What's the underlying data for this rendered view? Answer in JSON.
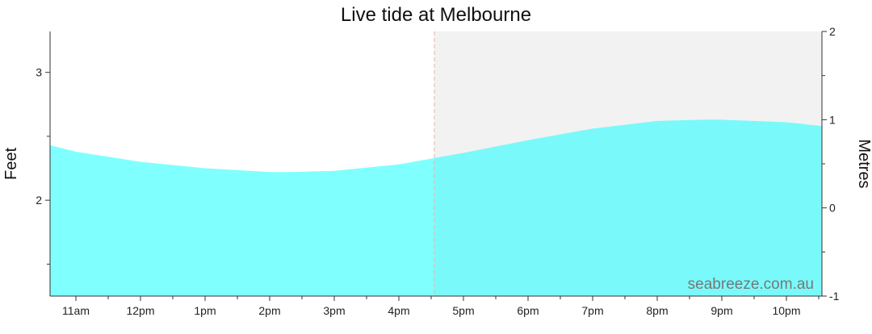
{
  "chart_data": {
    "type": "area",
    "title": "Live tide at Melbourne",
    "ylabel_left": "Feet",
    "ylabel_right": "Metres",
    "watermark": "seabreeze.com.au",
    "x_tick_labels": [
      "11am",
      "12pm",
      "1pm",
      "2pm",
      "3pm",
      "4pm",
      "5pm",
      "6pm",
      "7pm",
      "8pm",
      "9pm",
      "10pm"
    ],
    "x_tick_hours": [
      11,
      12,
      13,
      14,
      15,
      16,
      17,
      18,
      19,
      20,
      21,
      22
    ],
    "x_range_hours": [
      10.6,
      22.55
    ],
    "now_hour": 16.55,
    "ylim_feet": [
      1.25,
      3.32
    ],
    "y_left_ticks": [
      {
        "value": 3,
        "label": "3"
      },
      {
        "value": 2,
        "label": "2"
      }
    ],
    "y_left_minor_ticks": [
      2.5,
      1.5
    ],
    "y_right_ticks": [
      {
        "value": 2,
        "label": "2"
      },
      {
        "value": 1,
        "label": "1"
      },
      {
        "value": 0,
        "label": "0"
      },
      {
        "value": -1,
        "label": "-1"
      }
    ],
    "y_right_range_metres": [
      -1,
      2
    ],
    "series": [
      {
        "x_hours": [
          10.6,
          11,
          12,
          13,
          14,
          14.3,
          15,
          16,
          16.55,
          17,
          18,
          19,
          20,
          20.7,
          21,
          22,
          22.55
        ],
        "y_feet": [
          2.43,
          2.38,
          2.3,
          2.25,
          2.22,
          2.22,
          2.23,
          2.28,
          2.33,
          2.37,
          2.47,
          2.56,
          2.62,
          2.63,
          2.63,
          2.61,
          2.58
        ]
      }
    ]
  },
  "colors": {
    "fill_past": "#80ffff",
    "fill_future": "#7af9fb",
    "future_background": "#f2f2f2",
    "now_line": "#e8b4a6",
    "axis": "#333333"
  }
}
